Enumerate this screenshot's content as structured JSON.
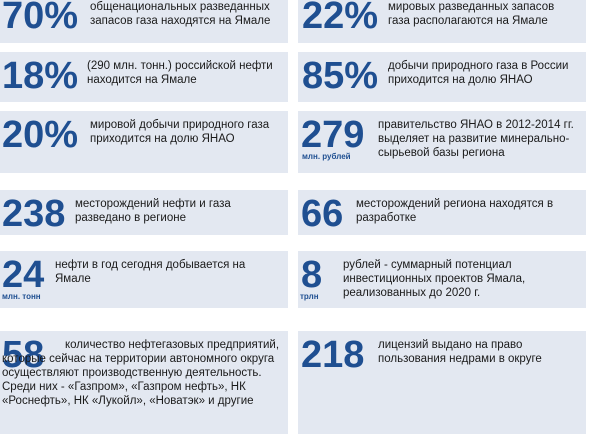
{
  "colors": {
    "accent": "#1f4f91",
    "card_bg": "#e3e8f1",
    "text": "#1a1a1a"
  },
  "facts": [
    {
      "value": "70%",
      "unit": "",
      "text": "общенациональных разведанных запасов газа находятся на Ямале"
    },
    {
      "value": "22%",
      "unit": "",
      "text": "мировых разведанных запасов газа располагаются на Ямале"
    },
    {
      "value": "18%",
      "unit": "",
      "text": "(290 млн. тонн.) российской нефти находится на Ямале"
    },
    {
      "value": "85%",
      "unit": "",
      "text": "добычи природного газа в России приходится на долю ЯНАО"
    },
    {
      "value": "20%",
      "unit": "",
      "text": "мировой добычи природного газа приходится на долю ЯНАО"
    },
    {
      "value": "279",
      "unit": "млн. рублей",
      "text": "правительство ЯНАО в 2012-2014 гг. выделяет на развитие минерально-сырьевой базы региона"
    },
    {
      "value": "238",
      "unit": "",
      "text": "месторождений нефти и газа разведано в регионе"
    },
    {
      "value": "66",
      "unit": "",
      "text": "месторождений региона находятся в разработке"
    },
    {
      "value": "24",
      "unit": "млн. тонн",
      "text": "нефти в год сегодня добывается на Ямале"
    },
    {
      "value": "8",
      "unit": "трлн",
      "text": "рублей - суммарный потенциал инвестиционных проектов Ямала, реализованных до 2020 г."
    },
    {
      "value": "58",
      "unit": "",
      "text": "количество нефтегазовых предприятий, которые сейчас на территории автономного округа осуществляют производственную деятельность. Среди них - «Газпром», «Газпром нефть», НК «Роснефть», НК «Лукойл», «Новатэк» и другие"
    },
    {
      "value": "218",
      "unit": "",
      "text": "лицензий выдано на право пользования недрами в округе"
    }
  ]
}
